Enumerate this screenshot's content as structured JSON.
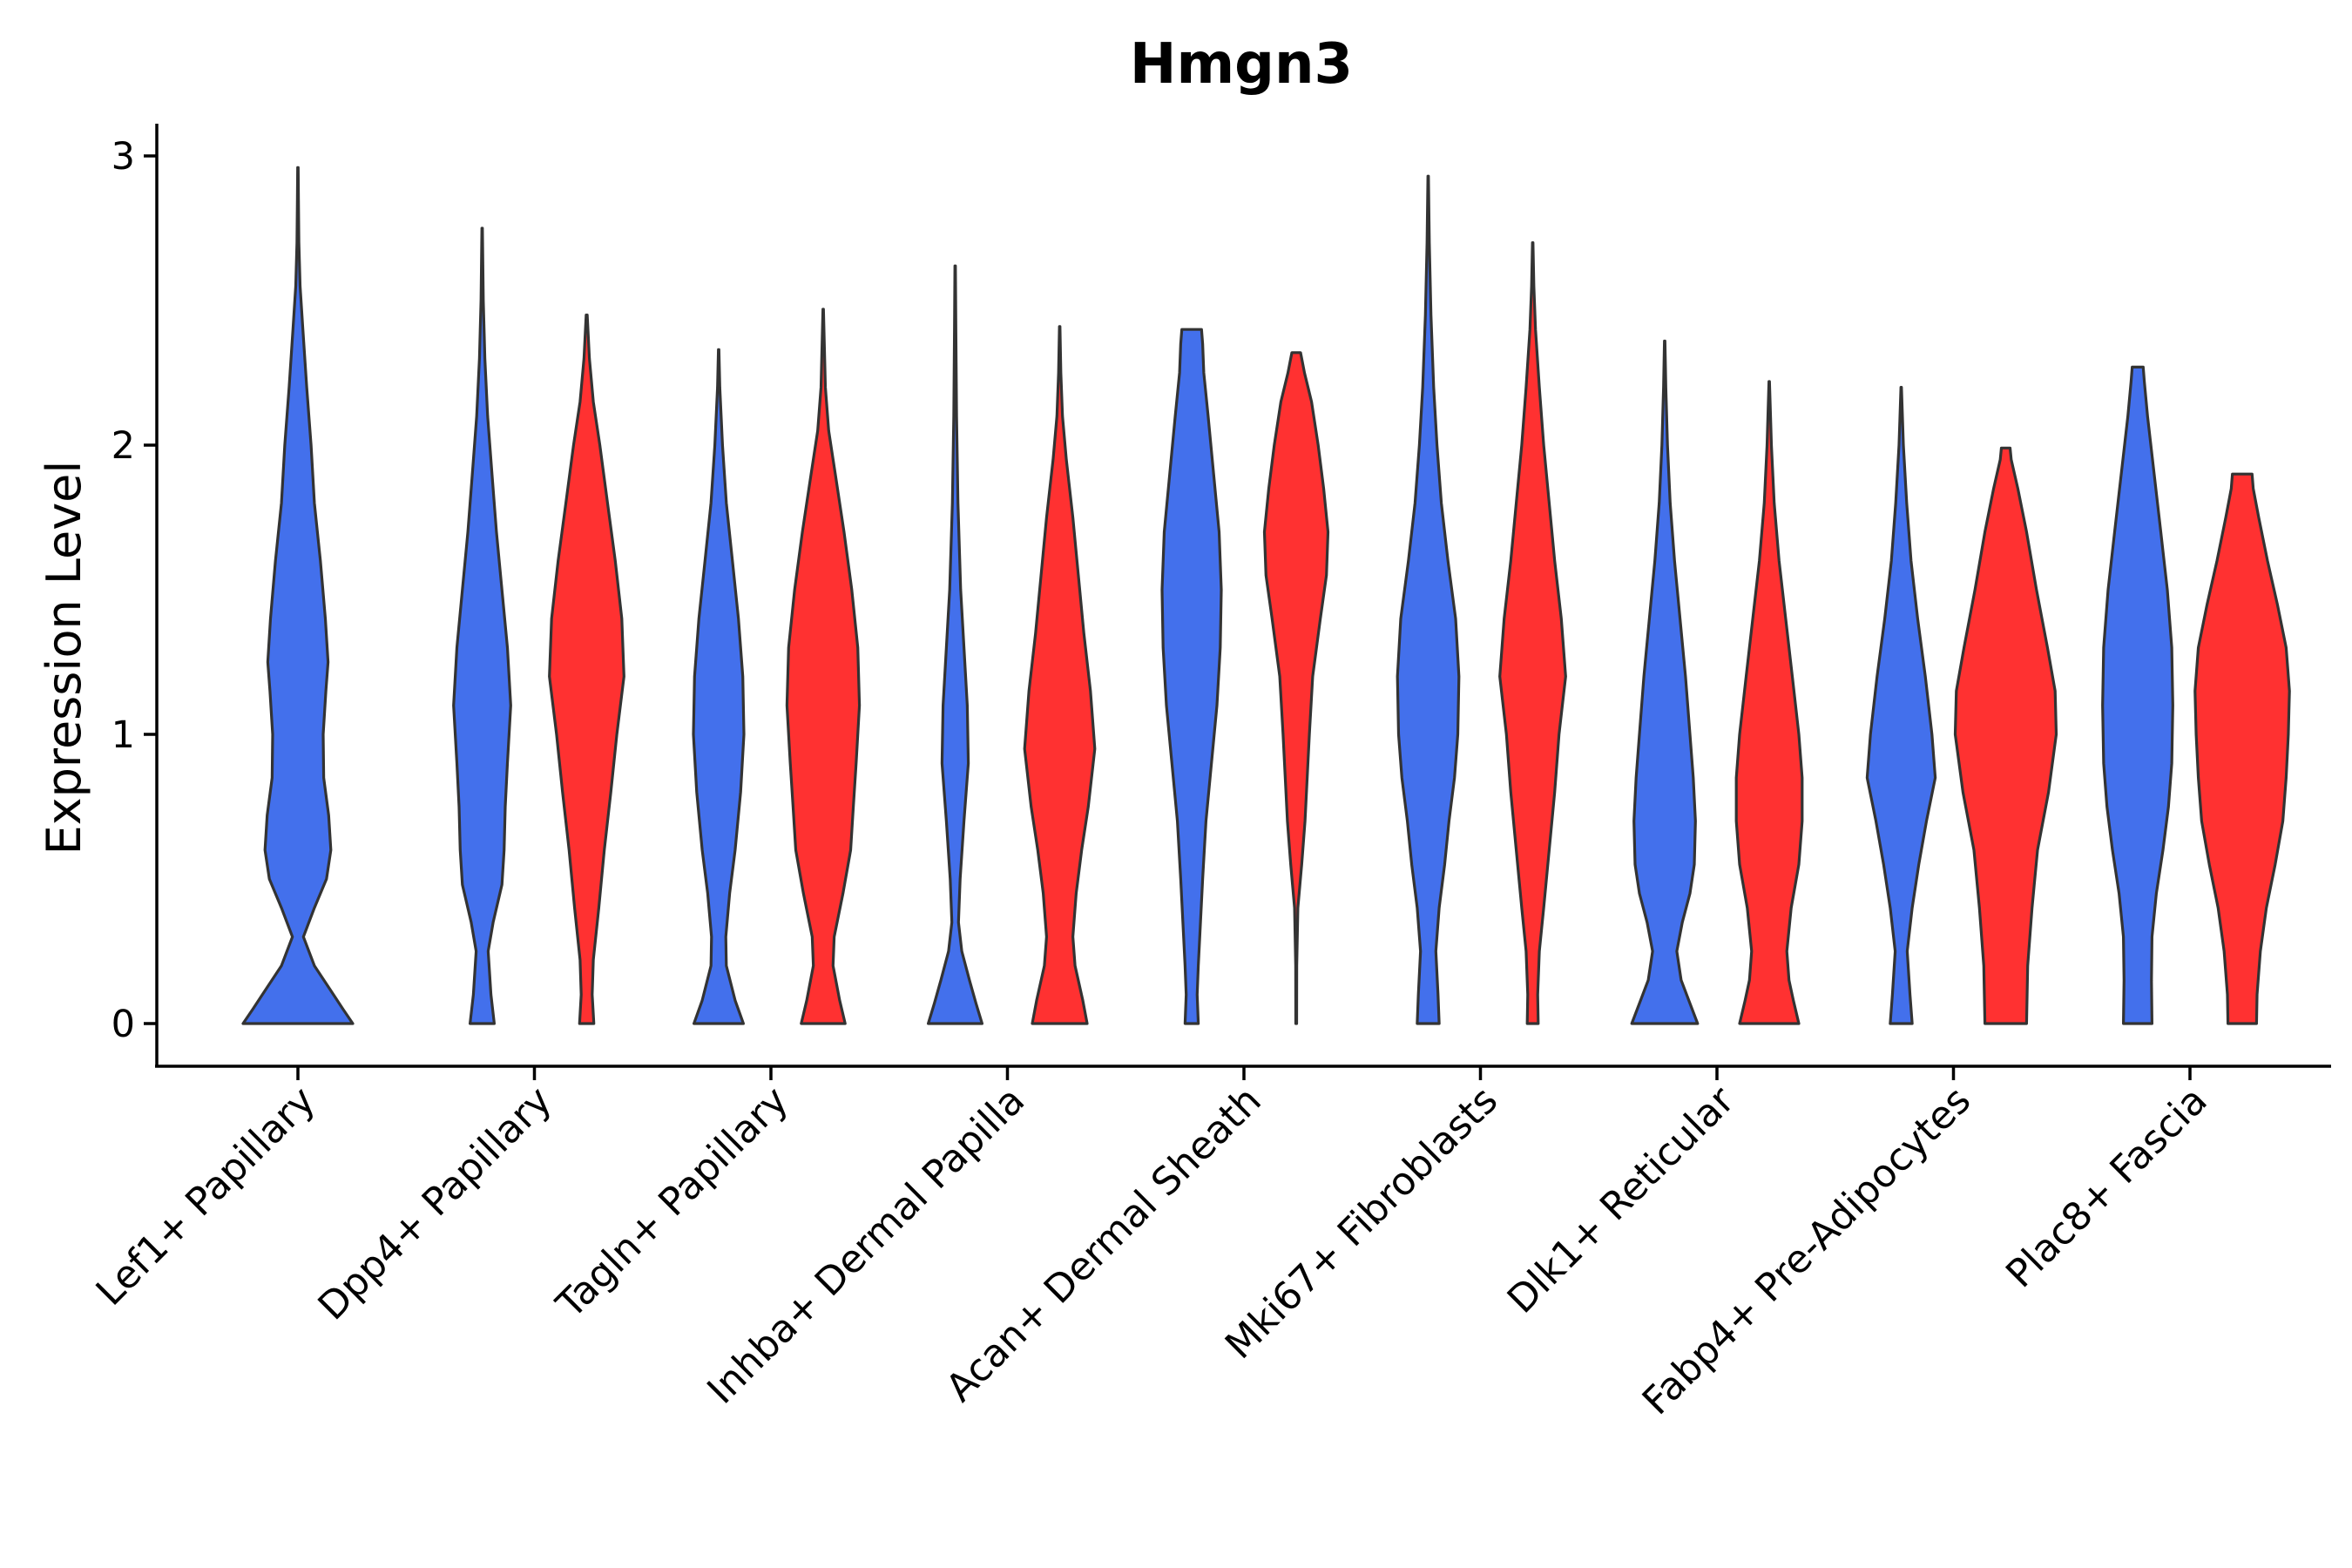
{
  "chart_data": {
    "type": "violin",
    "title": "Hmgn3",
    "xlabel": "",
    "ylabel": "Expression Level",
    "ylim": [
      -0.15,
      3.12
    ],
    "yticks": [
      0,
      1,
      2,
      3
    ],
    "legend": "none",
    "colors": {
      "group1": "#4370EC",
      "group2": "#FF3131"
    },
    "categories": [
      "Lef1+ Papillary",
      "Dpp4+ Papillary",
      "Tagln+ Papillary",
      "Inhba+ Dermal Papilla",
      "Acan+ Dermal Sheath",
      "Mki67+ Fibroblasts",
      "Dlk1+ Reticular",
      "Fabp4+ Pre-Adipocytes",
      "Plac8+ Fascia"
    ],
    "violins": [
      {
        "category": "Lef1+ Papillary",
        "group": "group1",
        "max": 2.96,
        "profile": [
          [
            0,
            1.0
          ],
          [
            0.05,
            0.82
          ],
          [
            0.12,
            0.58
          ],
          [
            0.2,
            0.3
          ],
          [
            0.3,
            0.1
          ],
          [
            0.4,
            0.3
          ],
          [
            0.5,
            0.52
          ],
          [
            0.6,
            0.6
          ],
          [
            0.72,
            0.56
          ],
          [
            0.85,
            0.47
          ],
          [
            1.0,
            0.46
          ],
          [
            1.15,
            0.51
          ],
          [
            1.25,
            0.55
          ],
          [
            1.4,
            0.5
          ],
          [
            1.6,
            0.41
          ],
          [
            1.8,
            0.3
          ],
          [
            2.0,
            0.24
          ],
          [
            2.2,
            0.16
          ],
          [
            2.4,
            0.09
          ],
          [
            2.55,
            0.04
          ],
          [
            2.7,
            0.018
          ],
          [
            2.85,
            0.01
          ],
          [
            2.96,
            0.005
          ]
        ]
      },
      {
        "category": "Dpp4+ Papillary",
        "group": "group1",
        "max": 2.75,
        "profile": [
          [
            0,
            0.22
          ],
          [
            0.1,
            0.16
          ],
          [
            0.25,
            0.11
          ],
          [
            0.35,
            0.2
          ],
          [
            0.48,
            0.36
          ],
          [
            0.6,
            0.4
          ],
          [
            0.75,
            0.42
          ],
          [
            0.9,
            0.46
          ],
          [
            1.1,
            0.52
          ],
          [
            1.3,
            0.46
          ],
          [
            1.5,
            0.36
          ],
          [
            1.7,
            0.26
          ],
          [
            1.9,
            0.18
          ],
          [
            2.1,
            0.1
          ],
          [
            2.3,
            0.05
          ],
          [
            2.5,
            0.02
          ],
          [
            2.75,
            0.005
          ]
        ]
      },
      {
        "category": "Dpp4+ Papillary",
        "group": "group2",
        "max": 2.45,
        "profile": [
          [
            0,
            0.13
          ],
          [
            0.1,
            0.1
          ],
          [
            0.22,
            0.12
          ],
          [
            0.4,
            0.22
          ],
          [
            0.6,
            0.32
          ],
          [
            0.8,
            0.44
          ],
          [
            1.0,
            0.55
          ],
          [
            1.2,
            0.68
          ],
          [
            1.4,
            0.64
          ],
          [
            1.6,
            0.52
          ],
          [
            1.8,
            0.38
          ],
          [
            2.0,
            0.24
          ],
          [
            2.15,
            0.12
          ],
          [
            2.3,
            0.05
          ],
          [
            2.45,
            0.01
          ]
        ]
      },
      {
        "category": "Tagln+ Papillary",
        "group": "group1",
        "max": 2.33,
        "profile": [
          [
            0,
            0.45
          ],
          [
            0.08,
            0.3
          ],
          [
            0.2,
            0.14
          ],
          [
            0.3,
            0.13
          ],
          [
            0.45,
            0.2
          ],
          [
            0.6,
            0.3
          ],
          [
            0.8,
            0.4
          ],
          [
            1.0,
            0.46
          ],
          [
            1.2,
            0.44
          ],
          [
            1.4,
            0.36
          ],
          [
            1.6,
            0.25
          ],
          [
            1.8,
            0.14
          ],
          [
            2.0,
            0.07
          ],
          [
            2.2,
            0.02
          ],
          [
            2.33,
            0.005
          ]
        ]
      },
      {
        "category": "Tagln+ Papillary",
        "group": "group2",
        "max": 2.47,
        "profile": [
          [
            0,
            0.4
          ],
          [
            0.08,
            0.3
          ],
          [
            0.2,
            0.18
          ],
          [
            0.3,
            0.2
          ],
          [
            0.45,
            0.36
          ],
          [
            0.6,
            0.5
          ],
          [
            0.75,
            0.55
          ],
          [
            0.9,
            0.6
          ],
          [
            1.1,
            0.66
          ],
          [
            1.3,
            0.63
          ],
          [
            1.5,
            0.52
          ],
          [
            1.7,
            0.38
          ],
          [
            1.9,
            0.22
          ],
          [
            2.05,
            0.1
          ],
          [
            2.2,
            0.04
          ],
          [
            2.47,
            0.005
          ]
        ]
      },
      {
        "category": "Inhba+ Dermal Papilla",
        "group": "group1",
        "max": 2.62,
        "profile": [
          [
            0,
            0.49
          ],
          [
            0.07,
            0.38
          ],
          [
            0.15,
            0.26
          ],
          [
            0.25,
            0.12
          ],
          [
            0.35,
            0.06
          ],
          [
            0.5,
            0.09
          ],
          [
            0.7,
            0.16
          ],
          [
            0.9,
            0.24
          ],
          [
            1.1,
            0.22
          ],
          [
            1.3,
            0.16
          ],
          [
            1.5,
            0.1
          ],
          [
            1.8,
            0.05
          ],
          [
            2.1,
            0.025
          ],
          [
            2.4,
            0.012
          ],
          [
            2.62,
            0.004
          ]
        ]
      },
      {
        "category": "Inhba+ Dermal Papilla",
        "group": "group2",
        "max": 2.41,
        "profile": [
          [
            0,
            0.5
          ],
          [
            0.08,
            0.42
          ],
          [
            0.2,
            0.28
          ],
          [
            0.3,
            0.24
          ],
          [
            0.45,
            0.3
          ],
          [
            0.6,
            0.4
          ],
          [
            0.75,
            0.52
          ],
          [
            0.95,
            0.64
          ],
          [
            1.15,
            0.56
          ],
          [
            1.35,
            0.44
          ],
          [
            1.55,
            0.34
          ],
          [
            1.75,
            0.24
          ],
          [
            1.95,
            0.12
          ],
          [
            2.1,
            0.05
          ],
          [
            2.25,
            0.02
          ],
          [
            2.41,
            0.005
          ]
        ]
      },
      {
        "category": "Acan+ Dermal Sheath",
        "group": "group1",
        "max": 2.4,
        "profile": [
          [
            0,
            0.12
          ],
          [
            0.1,
            0.1
          ],
          [
            0.2,
            0.12
          ],
          [
            0.35,
            0.16
          ],
          [
            0.5,
            0.2
          ],
          [
            0.7,
            0.26
          ],
          [
            0.9,
            0.36
          ],
          [
            1.1,
            0.46
          ],
          [
            1.3,
            0.52
          ],
          [
            1.5,
            0.54
          ],
          [
            1.7,
            0.5
          ],
          [
            1.9,
            0.4
          ],
          [
            2.1,
            0.3
          ],
          [
            2.25,
            0.22
          ],
          [
            2.35,
            0.2
          ],
          [
            2.4,
            0.18
          ]
        ]
      },
      {
        "category": "Acan+ Dermal Sheath",
        "group": "group2",
        "max": 2.32,
        "profile": [
          [
            0,
            0.008
          ],
          [
            0.2,
            0.01
          ],
          [
            0.4,
            0.03
          ],
          [
            0.55,
            0.1
          ],
          [
            0.7,
            0.16
          ],
          [
            0.85,
            0.2
          ],
          [
            1.0,
            0.24
          ],
          [
            1.2,
            0.3
          ],
          [
            1.4,
            0.44
          ],
          [
            1.55,
            0.55
          ],
          [
            1.7,
            0.58
          ],
          [
            1.85,
            0.5
          ],
          [
            2.0,
            0.4
          ],
          [
            2.15,
            0.28
          ],
          [
            2.25,
            0.15
          ],
          [
            2.32,
            0.08
          ]
        ]
      },
      {
        "category": "Mki67+ Fibroblasts",
        "group": "group1",
        "max": 2.93,
        "profile": [
          [
            0,
            0.2
          ],
          [
            0.1,
            0.18
          ],
          [
            0.25,
            0.14
          ],
          [
            0.4,
            0.2
          ],
          [
            0.55,
            0.3
          ],
          [
            0.7,
            0.38
          ],
          [
            0.85,
            0.48
          ],
          [
            1.0,
            0.54
          ],
          [
            1.2,
            0.56
          ],
          [
            1.4,
            0.5
          ],
          [
            1.6,
            0.36
          ],
          [
            1.8,
            0.24
          ],
          [
            2.0,
            0.16
          ],
          [
            2.2,
            0.1
          ],
          [
            2.45,
            0.05
          ],
          [
            2.7,
            0.02
          ],
          [
            2.93,
            0.004
          ]
        ]
      },
      {
        "category": "Mki67+ Fibroblasts",
        "group": "group2",
        "max": 2.7,
        "profile": [
          [
            0,
            0.1
          ],
          [
            0.1,
            0.09
          ],
          [
            0.25,
            0.12
          ],
          [
            0.4,
            0.2
          ],
          [
            0.6,
            0.3
          ],
          [
            0.8,
            0.4
          ],
          [
            1.0,
            0.48
          ],
          [
            1.2,
            0.6
          ],
          [
            1.4,
            0.52
          ],
          [
            1.6,
            0.4
          ],
          [
            1.8,
            0.3
          ],
          [
            2.0,
            0.2
          ],
          [
            2.2,
            0.12
          ],
          [
            2.4,
            0.05
          ],
          [
            2.55,
            0.02
          ],
          [
            2.7,
            0.004
          ]
        ]
      },
      {
        "category": "Dlk1+ Reticular",
        "group": "group1",
        "max": 2.36,
        "profile": [
          [
            0,
            0.6
          ],
          [
            0.08,
            0.44
          ],
          [
            0.15,
            0.3
          ],
          [
            0.25,
            0.22
          ],
          [
            0.35,
            0.32
          ],
          [
            0.45,
            0.46
          ],
          [
            0.55,
            0.54
          ],
          [
            0.7,
            0.56
          ],
          [
            0.85,
            0.52
          ],
          [
            1.0,
            0.46
          ],
          [
            1.2,
            0.38
          ],
          [
            1.4,
            0.28
          ],
          [
            1.6,
            0.18
          ],
          [
            1.8,
            0.1
          ],
          [
            2.0,
            0.05
          ],
          [
            2.2,
            0.02
          ],
          [
            2.36,
            0.004
          ]
        ]
      },
      {
        "category": "Dlk1+ Reticular",
        "group": "group2",
        "max": 2.22,
        "profile": [
          [
            0,
            0.54
          ],
          [
            0.08,
            0.44
          ],
          [
            0.15,
            0.36
          ],
          [
            0.25,
            0.32
          ],
          [
            0.4,
            0.4
          ],
          [
            0.55,
            0.54
          ],
          [
            0.7,
            0.6
          ],
          [
            0.85,
            0.6
          ],
          [
            1.0,
            0.54
          ],
          [
            1.2,
            0.42
          ],
          [
            1.4,
            0.3
          ],
          [
            1.6,
            0.18
          ],
          [
            1.8,
            0.09
          ],
          [
            2.0,
            0.04
          ],
          [
            2.22,
            0.004
          ]
        ]
      },
      {
        "category": "Fabp4+ Pre-Adipocytes",
        "group": "group1",
        "max": 2.2,
        "profile": [
          [
            0,
            0.2
          ],
          [
            0.1,
            0.16
          ],
          [
            0.25,
            0.11
          ],
          [
            0.4,
            0.2
          ],
          [
            0.55,
            0.32
          ],
          [
            0.7,
            0.46
          ],
          [
            0.85,
            0.62
          ],
          [
            1.0,
            0.56
          ],
          [
            1.2,
            0.44
          ],
          [
            1.4,
            0.3
          ],
          [
            1.6,
            0.18
          ],
          [
            1.8,
            0.1
          ],
          [
            2.0,
            0.04
          ],
          [
            2.2,
            0.004
          ]
        ]
      },
      {
        "category": "Fabp4+ Pre-Adipocytes",
        "group": "group2",
        "max": 1.99,
        "profile": [
          [
            0,
            0.38
          ],
          [
            0.2,
            0.4
          ],
          [
            0.4,
            0.48
          ],
          [
            0.6,
            0.58
          ],
          [
            0.8,
            0.78
          ],
          [
            1.0,
            0.92
          ],
          [
            1.15,
            0.9
          ],
          [
            1.3,
            0.76
          ],
          [
            1.5,
            0.56
          ],
          [
            1.7,
            0.38
          ],
          [
            1.85,
            0.22
          ],
          [
            1.95,
            0.1
          ],
          [
            1.99,
            0.08
          ]
        ]
      },
      {
        "category": "Plac8+ Fascia",
        "group": "group1",
        "max": 2.27,
        "profile": [
          [
            0,
            0.26
          ],
          [
            0.15,
            0.25
          ],
          [
            0.3,
            0.26
          ],
          [
            0.45,
            0.34
          ],
          [
            0.6,
            0.46
          ],
          [
            0.75,
            0.56
          ],
          [
            0.9,
            0.62
          ],
          [
            1.1,
            0.64
          ],
          [
            1.3,
            0.62
          ],
          [
            1.5,
            0.54
          ],
          [
            1.7,
            0.42
          ],
          [
            1.9,
            0.3
          ],
          [
            2.1,
            0.18
          ],
          [
            2.22,
            0.12
          ],
          [
            2.27,
            0.1
          ]
        ]
      },
      {
        "category": "Plac8+ Fascia",
        "group": "group2",
        "max": 1.9,
        "profile": [
          [
            0,
            0.26
          ],
          [
            0.1,
            0.27
          ],
          [
            0.25,
            0.33
          ],
          [
            0.4,
            0.44
          ],
          [
            0.55,
            0.6
          ],
          [
            0.7,
            0.74
          ],
          [
            0.85,
            0.8
          ],
          [
            1.0,
            0.84
          ],
          [
            1.15,
            0.86
          ],
          [
            1.3,
            0.8
          ],
          [
            1.45,
            0.64
          ],
          [
            1.6,
            0.46
          ],
          [
            1.75,
            0.3
          ],
          [
            1.85,
            0.2
          ],
          [
            1.9,
            0.18
          ]
        ]
      }
    ]
  }
}
